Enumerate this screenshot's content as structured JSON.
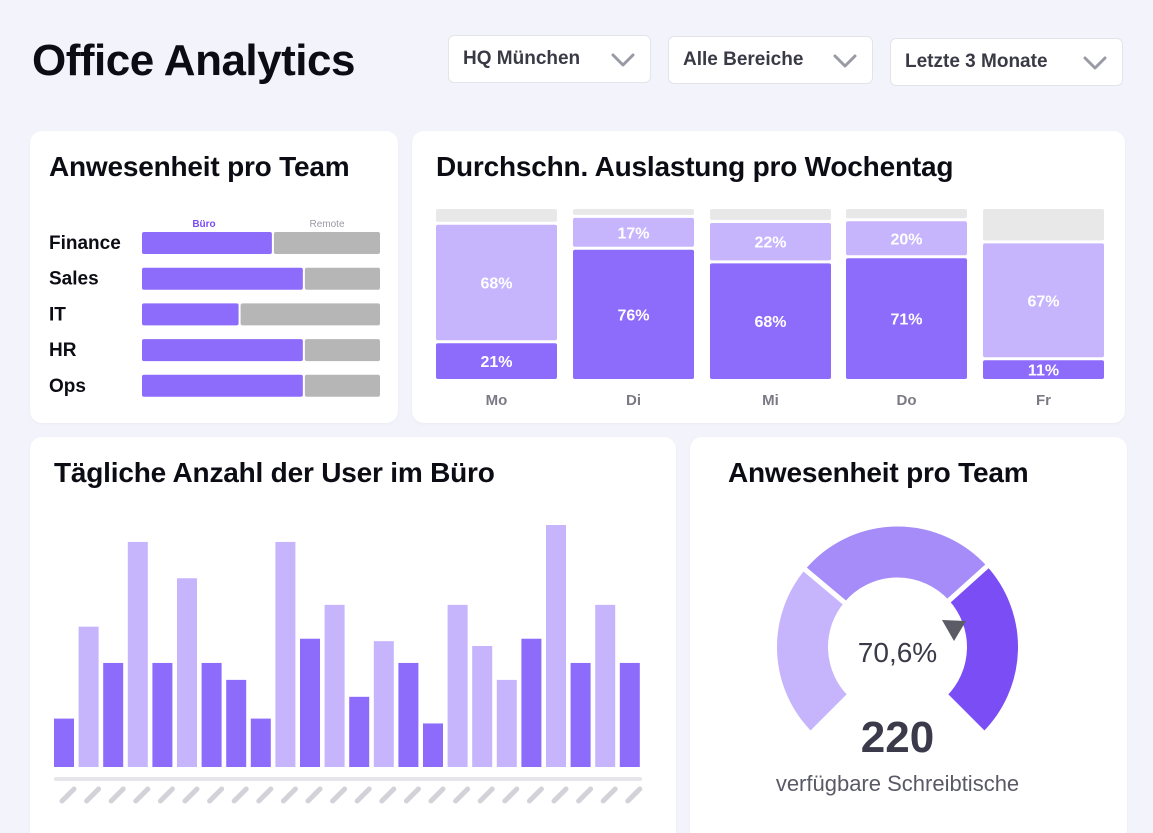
{
  "app": {
    "title": "Office Analytics"
  },
  "filters": [
    {
      "label": "HQ München",
      "icon": "chevron-down-icon"
    },
    {
      "label": "Alle Bereiche",
      "icon": "chevron-down-icon"
    },
    {
      "label": "Letzte 3 Monate",
      "icon": "chevron-down-icon"
    }
  ],
  "colors": {
    "primary": "#8d6bfb",
    "light": "#c6b5fd",
    "gray": "#b6b6b6",
    "empty": "#e8e8e8",
    "gauge_dark": "#7a4df5",
    "gauge_mid": "#a58cf8",
    "gauge_light": "#c6b5fd"
  },
  "team_card": {
    "title": "Anwesenheit pro Team",
    "legend": {
      "office": "Büro",
      "remote": "Remote"
    },
    "teams": [
      {
        "name": "Finance",
        "office_share": 0.55
      },
      {
        "name": "Sales",
        "office_share": 0.68
      },
      {
        "name": "IT",
        "office_share": 0.41
      },
      {
        "name": "HR",
        "office_share": 0.68
      },
      {
        "name": "Ops",
        "office_share": 0.68
      }
    ]
  },
  "weekday_card": {
    "title": "Durchschn. Auslastung pro Wochentag",
    "chart_data": {
      "type": "bar",
      "stacked": true,
      "categories": [
        "Mo",
        "Di",
        "Mi",
        "Do",
        "Fr"
      ],
      "series": [
        {
          "values": [
            21,
            76,
            68,
            71,
            11
          ],
          "labels": [
            "21%",
            "76%",
            "68%",
            "71%",
            "11%"
          ],
          "color": "#8d6bfb"
        },
        {
          "values": [
            68,
            17,
            22,
            20,
            67
          ],
          "labels": [
            "68%",
            "17%",
            "22%",
            "20%",
            "67%"
          ],
          "color": "#c6b5fd"
        }
      ],
      "ylim": [
        0,
        100
      ],
      "grid": false
    }
  },
  "daily_card": {
    "title": "Tägliche Anzahl der User im Büro",
    "chart_data": {
      "type": "bar",
      "values": [
        20,
        58,
        43,
        93,
        43,
        78,
        43,
        36,
        20,
        93,
        53,
        67,
        29,
        52,
        43,
        18,
        67,
        50,
        36,
        53,
        100,
        43,
        67,
        43
      ],
      "colors": [
        "dark",
        "light",
        "dark",
        "light",
        "dark",
        "light",
        "dark",
        "dark",
        "dark",
        "light",
        "dark",
        "light",
        "dark",
        "light",
        "dark",
        "dark",
        "light",
        "light",
        "light",
        "dark",
        "light",
        "dark",
        "light",
        "dark"
      ],
      "grid": false
    }
  },
  "gauge_card": {
    "title": "Anwesenheit pro Team",
    "chart_data": {
      "type": "gauge",
      "value_percent": 70.6,
      "value_label": "70,6%",
      "segments": [
        33.3,
        33.3,
        33.4
      ]
    },
    "count": "220",
    "count_label": "verfügbare Schreibtische"
  }
}
